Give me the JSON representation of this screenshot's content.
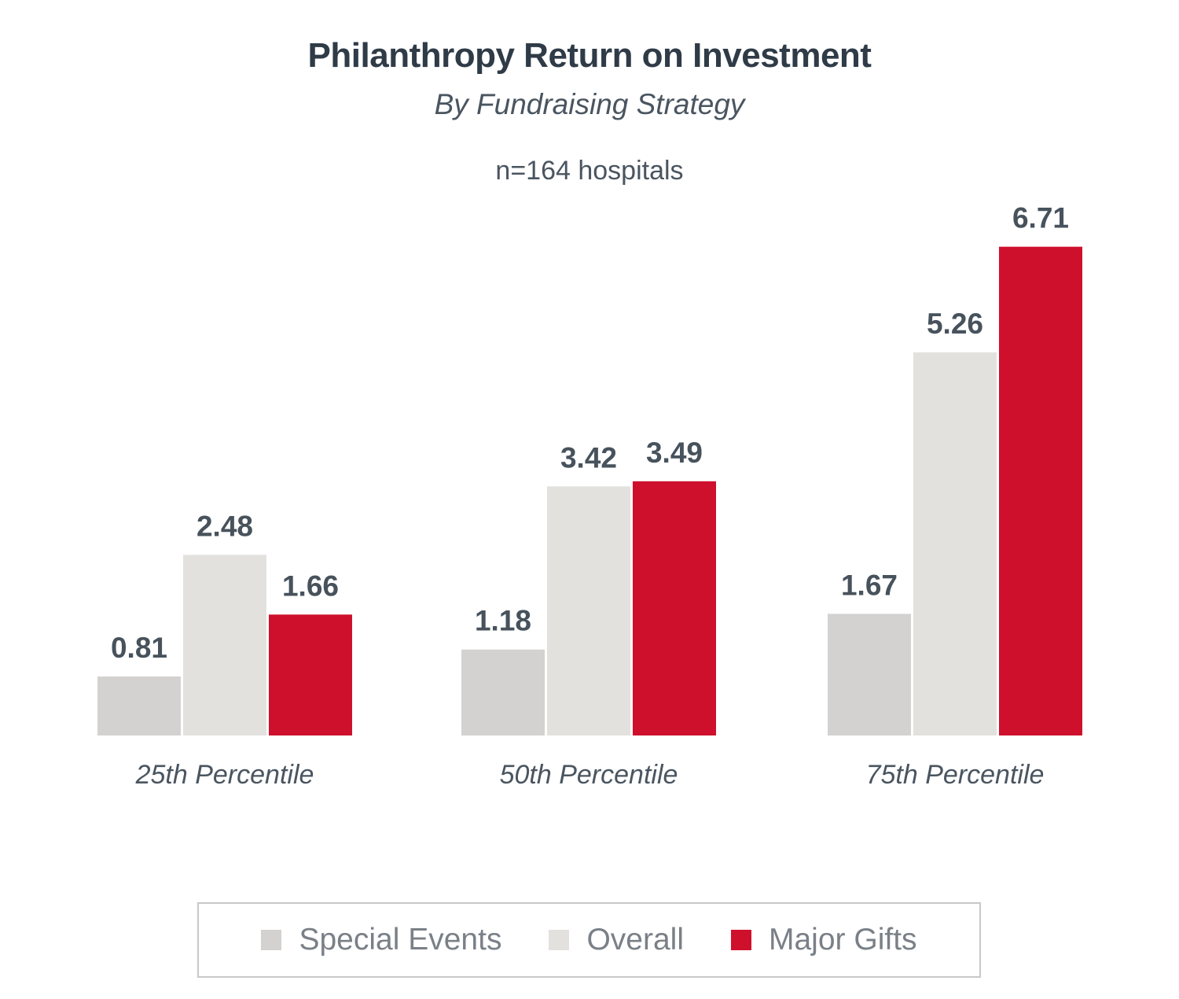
{
  "chart_data": {
    "type": "bar",
    "title": "Philanthropy Return on Investment",
    "subtitle": "By Fundraising Strategy",
    "note": "n=164 hospitals",
    "xlabel": "",
    "ylabel": "",
    "ylim": [
      0,
      7
    ],
    "grid": false,
    "legend_position": "bottom",
    "categories": [
      "25th Percentile",
      "50th Percentile",
      "75th Percentile"
    ],
    "series": [
      {
        "name": "Special Events",
        "color": "#d3d2d1",
        "values": [
          0.81,
          1.18,
          1.67
        ],
        "labels": [
          "0.81",
          "1.18",
          "1.67"
        ]
      },
      {
        "name": "Overall",
        "color": "#e2e1de",
        "values": [
          2.48,
          3.42,
          5.26
        ],
        "labels": [
          "2.48",
          "3.42",
          "5.26"
        ]
      },
      {
        "name": "Major Gifts",
        "color": "#cf102d",
        "values": [
          1.66,
          3.49,
          6.71
        ],
        "labels": [
          "1.66",
          "3.49",
          "6.71"
        ]
      }
    ]
  }
}
